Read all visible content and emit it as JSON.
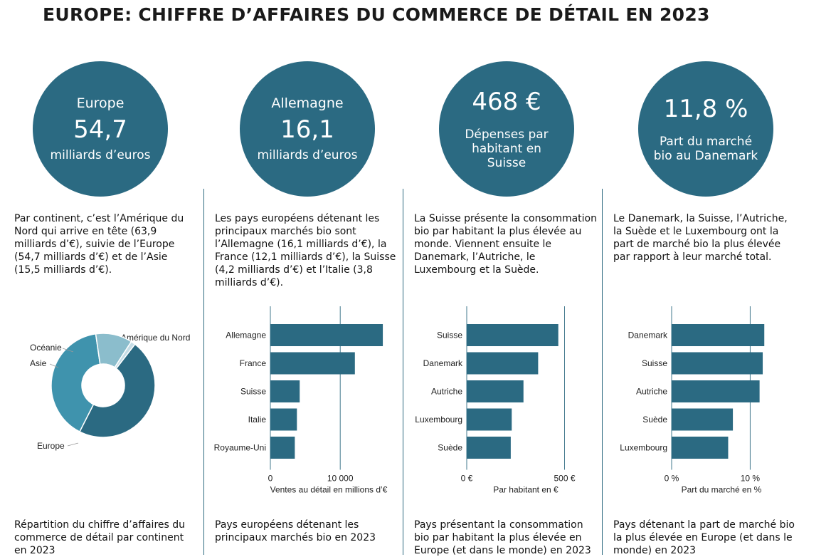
{
  "title": "EUROPE: CHIFFRE D’AFFAIRES DU COMMERCE DE DÉTAIL EN 2023",
  "colors": {
    "accent": "#2b6a82",
    "bar": "#2b6a82",
    "axis": "#2e6a80"
  },
  "panels": [
    {
      "circle": {
        "label": "Europe",
        "value": "54,7",
        "unit": "milliards d’euros"
      },
      "paragraph": "Par continent, c’est l’Amérique du Nord qui arrive en tête (63,9 milliards d’€), suivie de l’Europe (54,7 milliards d’€) et de l’Asie (15,5 milliards d’€).",
      "caption": "Répartition du chiffre d’affaires du commerce de détail par continent en 2023"
    },
    {
      "circle": {
        "label": "Allemagne",
        "value": "16,1",
        "unit": "milliards d’euros"
      },
      "paragraph": "Les pays européens détenant les principaux marchés bio sont l’Allemagne (16,1 milliards d’€), la France (12,1 milliards d’€), la Suisse (4,2 milliards d’€) et l’Italie (3,8 milliards d’€).",
      "caption": "Pays européens détenant les principaux marchés bio en 2023"
    },
    {
      "circle": {
        "value": "468 €",
        "desc": "Dépenses par habitant en Suisse"
      },
      "paragraph": "La Suisse présente la consommation bio par habitant la plus élevée au monde. Viennent ensuite le Danemark, l’Autriche, le Luxembourg et la Suède.",
      "caption": "Pays présentant la consommation bio par habitant la plus élevée en Europe (et dans le monde) en 2023"
    },
    {
      "circle": {
        "value": "11,8 %",
        "desc": "Part du marché bio au Danemark"
      },
      "paragraph": "Le Danemark, la Suisse, l’Autriche, la Suède et le Luxembourg ont la part de marché bio la plus élevée par rapport à leur marché total.",
      "caption": "Pays détenant la part de marché bio la plus élevée en Europe (et dans le monde) en 2023"
    }
  ],
  "chart_data": [
    {
      "type": "pie",
      "donut": true,
      "categories": [
        "Amérique du Nord",
        "Europe",
        "Asie",
        "Océanie"
      ],
      "values": [
        63.9,
        54.7,
        15.5,
        1.9
      ],
      "colors": [
        "#2b6a82",
        "#3f93ad",
        "#8bbdcc",
        "#c6dde6"
      ]
    },
    {
      "type": "bar",
      "orientation": "horizontal",
      "categories": [
        "Allemagne",
        "France",
        "Suisse",
        "Italie",
        "Royaume-Uni"
      ],
      "values": [
        16100,
        12100,
        4200,
        3800,
        3500
      ],
      "xlim": [
        0,
        16500
      ],
      "ticks": [
        {
          "v": 0,
          "label": "0"
        },
        {
          "v": 10000,
          "label": "10 000"
        }
      ],
      "xlabel": "Ventes au détail en millions d’€"
    },
    {
      "type": "bar",
      "orientation": "horizontal",
      "categories": [
        "Suisse",
        "Danemark",
        "Autriche",
        "Luxembourg",
        "Suède"
      ],
      "values": [
        468,
        365,
        290,
        230,
        225
      ],
      "xlim": [
        0,
        520
      ],
      "ticks": [
        {
          "v": 0,
          "label": "0 €"
        },
        {
          "v": 500,
          "label": "500 €"
        }
      ],
      "xlabel": "Par habitant en €"
    },
    {
      "type": "bar",
      "orientation": "horizontal",
      "categories": [
        "Danemark",
        "Suisse",
        "Autriche",
        "Suède",
        "Luxembourg"
      ],
      "values": [
        11.8,
        11.6,
        11.2,
        7.8,
        7.2
      ],
      "xlim": [
        0,
        13.5
      ],
      "ticks": [
        {
          "v": 0,
          "label": "0 %"
        },
        {
          "v": 10,
          "label": "10 %"
        }
      ],
      "xlabel": "Part du marché en %"
    }
  ]
}
